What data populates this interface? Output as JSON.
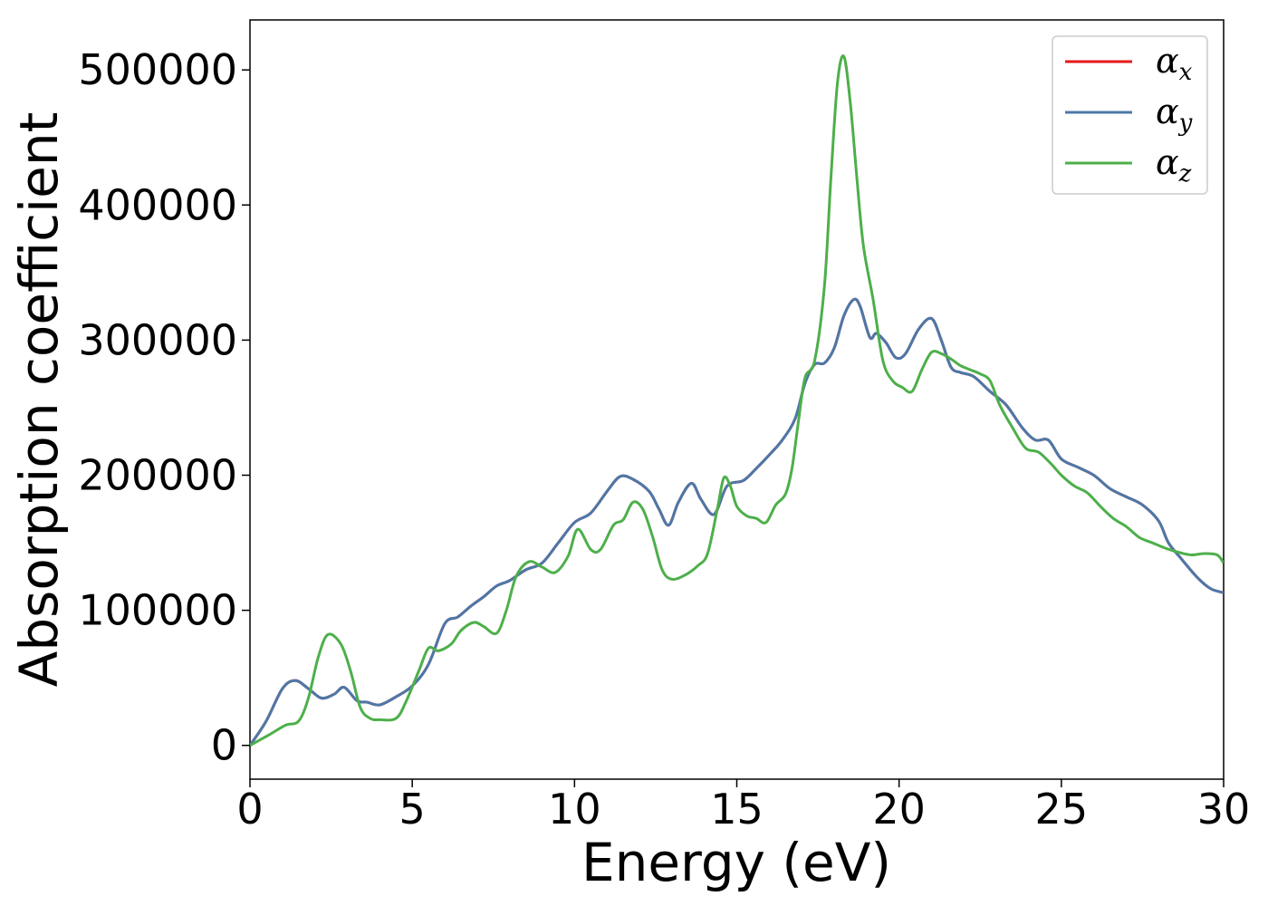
{
  "chart_data": {
    "type": "line",
    "title": "",
    "xlabel": "Energy (eV)",
    "ylabel": "Absorption coefficient",
    "xlim": [
      0,
      30
    ],
    "ylim": [
      -25000,
      537000
    ],
    "xticks": [
      0,
      5,
      10,
      15,
      20,
      25,
      30
    ],
    "yticks": [
      0,
      100000,
      200000,
      300000,
      400000,
      500000
    ],
    "xtick_labels": [
      "0",
      "5",
      "10",
      "15",
      "20",
      "25",
      "30"
    ],
    "ytick_labels": [
      "0",
      "100000",
      "200000",
      "300000",
      "400000",
      "500000"
    ],
    "grid": false,
    "legend_position": "top-right",
    "series": [
      {
        "name": "α",
        "sub": "x",
        "color": "#e41a1c",
        "width": 3,
        "x": [
          0,
          0.5,
          1,
          1.4,
          1.8,
          2.2,
          2.6,
          2.9,
          3.3,
          3.6,
          4,
          4.5,
          5,
          5.5,
          6,
          6.4,
          6.8,
          7.2,
          7.6,
          8,
          8.5,
          9,
          9.5,
          10,
          10.5,
          11,
          11.4,
          11.8,
          12.3,
          12.6,
          12.9,
          13.2,
          13.6,
          13.9,
          14.3,
          14.7,
          15.2,
          15.6,
          16,
          16.4,
          16.8,
          17.1,
          17.4,
          17.7,
          18,
          18.3,
          18.6,
          18.8,
          19.1,
          19.3,
          19.6,
          19.9,
          20.2,
          20.6,
          21,
          21.3,
          21.6,
          21.9,
          22.3,
          22.8,
          23.3,
          23.8,
          24.2,
          24.6,
          25,
          25.5,
          26,
          26.5,
          27,
          27.5,
          28,
          28.3,
          28.7,
          29.2,
          29.6,
          30
        ],
        "y": [
          0,
          18000,
          42000,
          48000,
          42000,
          35000,
          38000,
          43000,
          33000,
          32000,
          30000,
          36000,
          44000,
          60000,
          90000,
          95000,
          103000,
          110000,
          118000,
          122000,
          130000,
          135000,
          150000,
          165000,
          172000,
          188000,
          199000,
          197000,
          188000,
          175000,
          163000,
          180000,
          194000,
          182000,
          171000,
          192000,
          196000,
          205000,
          215000,
          226000,
          242000,
          268000,
          282000,
          283000,
          294000,
          318000,
          330000,
          325000,
          302000,
          305000,
          298000,
          287000,
          290000,
          308000,
          316000,
          300000,
          280000,
          276000,
          273000,
          262000,
          252000,
          235000,
          226000,
          226000,
          212000,
          206000,
          200000,
          190000,
          184000,
          178000,
          166000,
          150000,
          138000,
          124000,
          116000,
          113000
        ]
      },
      {
        "name": "α",
        "sub": "y",
        "color": "#4c78a8",
        "width": 3,
        "x": [
          0,
          0.5,
          1,
          1.4,
          1.8,
          2.2,
          2.6,
          2.9,
          3.3,
          3.6,
          4,
          4.5,
          5,
          5.5,
          6,
          6.4,
          6.8,
          7.2,
          7.6,
          8,
          8.5,
          9,
          9.5,
          10,
          10.5,
          11,
          11.4,
          11.8,
          12.3,
          12.6,
          12.9,
          13.2,
          13.6,
          13.9,
          14.3,
          14.7,
          15.2,
          15.6,
          16,
          16.4,
          16.8,
          17.1,
          17.4,
          17.7,
          18,
          18.3,
          18.6,
          18.8,
          19.1,
          19.3,
          19.6,
          19.9,
          20.2,
          20.6,
          21,
          21.3,
          21.6,
          21.9,
          22.3,
          22.8,
          23.3,
          23.8,
          24.2,
          24.6,
          25,
          25.5,
          26,
          26.5,
          27,
          27.5,
          28,
          28.3,
          28.7,
          29.2,
          29.6,
          30
        ],
        "y": [
          0,
          18000,
          42000,
          48000,
          42000,
          35000,
          38000,
          43000,
          33000,
          32000,
          30000,
          36000,
          44000,
          60000,
          90000,
          95000,
          103000,
          110000,
          118000,
          122000,
          130000,
          135000,
          150000,
          165000,
          172000,
          188000,
          199000,
          197000,
          188000,
          175000,
          163000,
          180000,
          194000,
          182000,
          171000,
          192000,
          196000,
          205000,
          215000,
          226000,
          242000,
          268000,
          282000,
          283000,
          294000,
          318000,
          330000,
          325000,
          302000,
          305000,
          298000,
          287000,
          290000,
          308000,
          316000,
          300000,
          280000,
          276000,
          273000,
          262000,
          252000,
          235000,
          226000,
          226000,
          212000,
          206000,
          200000,
          190000,
          184000,
          178000,
          166000,
          150000,
          138000,
          124000,
          116000,
          113000
        ]
      },
      {
        "name": "α",
        "sub": "z",
        "color": "#4daf4a",
        "width": 3,
        "x": [
          0,
          0.6,
          1.1,
          1.5,
          1.8,
          2.1,
          2.4,
          2.8,
          3.1,
          3.4,
          3.7,
          4,
          4.5,
          4.8,
          5.2,
          5.5,
          5.8,
          6.2,
          6.5,
          6.9,
          7.2,
          7.6,
          7.9,
          8.2,
          8.6,
          9,
          9.4,
          9.8,
          10.1,
          10.5,
          10.8,
          11.2,
          11.5,
          11.8,
          12.1,
          12.4,
          12.7,
          13,
          13.4,
          13.8,
          14.1,
          14.4,
          14.6,
          14.8,
          15,
          15.3,
          15.6,
          15.9,
          16.2,
          16.5,
          16.7,
          16.9,
          17.1,
          17.4,
          17.7,
          17.9,
          18.1,
          18.3,
          18.5,
          18.7,
          18.9,
          19.2,
          19.5,
          19.8,
          20.1,
          20.4,
          20.7,
          21,
          21.3,
          21.6,
          21.9,
          22.2,
          22.5,
          22.8,
          23.1,
          23.5,
          23.9,
          24.3,
          24.7,
          25,
          25.4,
          25.8,
          26.2,
          26.6,
          27,
          27.4,
          27.8,
          28.2,
          28.6,
          29,
          29.4,
          29.8,
          30
        ],
        "y": [
          0,
          8000,
          15000,
          18000,
          35000,
          65000,
          82000,
          75000,
          55000,
          28000,
          20000,
          19000,
          20000,
          32000,
          55000,
          72000,
          70000,
          75000,
          85000,
          91000,
          88000,
          83000,
          100000,
          125000,
          136000,
          132000,
          128000,
          140000,
          160000,
          145000,
          145000,
          163000,
          167000,
          180000,
          175000,
          155000,
          130000,
          123000,
          126000,
          133000,
          142000,
          175000,
          198000,
          192000,
          177000,
          170000,
          168000,
          165000,
          178000,
          186000,
          205000,
          240000,
          272000,
          285000,
          340000,
          420000,
          490000,
          510000,
          475000,
          420000,
          370000,
          330000,
          285000,
          270000,
          265000,
          262000,
          278000,
          291000,
          290000,
          286000,
          281000,
          278000,
          275000,
          270000,
          252000,
          235000,
          220000,
          217000,
          208000,
          200000,
          192000,
          187000,
          177000,
          168000,
          162000,
          154000,
          150000,
          146000,
          143000,
          141000,
          142000,
          141000,
          135000
        ]
      }
    ]
  }
}
